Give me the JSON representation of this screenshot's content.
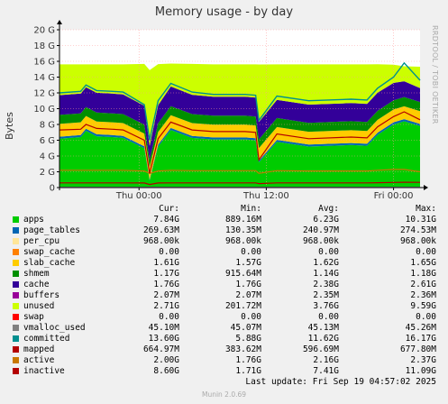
{
  "page": {
    "watermark": "RRDTOOL / TOBI OETIKER",
    "last_update": "Last update: Fri Sep 19 04:57:02 2025",
    "version": "Munin 2.0.69"
  },
  "legend_headers": {
    "cur": "Cur:",
    "min": "Min:",
    "avg": "Avg:",
    "max": "Max:"
  },
  "legend": [
    {
      "name": "apps",
      "color": "#00cc00",
      "cur": "7.84G",
      "min": "889.16M",
      "avg": "6.23G",
      "max": "10.31G"
    },
    {
      "name": "page_tables",
      "color": "#0066b3",
      "cur": "269.63M",
      "min": "130.35M",
      "avg": "240.97M",
      "max": "274.53M"
    },
    {
      "name": "per_cpu",
      "color": "#ffe699",
      "cur": "968.00k",
      "min": "968.00k",
      "avg": "968.00k",
      "max": "968.00k"
    },
    {
      "name": "swap_cache",
      "color": "#ff8000",
      "cur": "0.00",
      "min": "0.00",
      "avg": "0.00",
      "max": "0.00"
    },
    {
      "name": "slab_cache",
      "color": "#ffcc00",
      "cur": "1.61G",
      "min": "1.57G",
      "avg": "1.62G",
      "max": "1.65G"
    },
    {
      "name": "shmem",
      "color": "#008f00",
      "cur": "1.17G",
      "min": "915.64M",
      "avg": "1.14G",
      "max": "1.18G"
    },
    {
      "name": "cache",
      "color": "#330099",
      "cur": "1.76G",
      "min": "1.76G",
      "avg": "2.38G",
      "max": "2.61G"
    },
    {
      "name": "buffers",
      "color": "#990099",
      "cur": "2.07M",
      "min": "2.07M",
      "avg": "2.35M",
      "max": "2.36M"
    },
    {
      "name": "unused",
      "color": "#ccff00",
      "cur": "2.71G",
      "min": "201.72M",
      "avg": "3.76G",
      "max": "9.59G"
    },
    {
      "name": "swap",
      "color": "#ff0000",
      "cur": "0.00",
      "min": "0.00",
      "avg": "0.00",
      "max": "0.00"
    },
    {
      "name": "vmalloc_used",
      "color": "#808080",
      "cur": "45.10M",
      "min": "45.07M",
      "avg": "45.13M",
      "max": "45.26M"
    },
    {
      "name": "committed",
      "color": "#008f8f",
      "cur": "13.60G",
      "min": "5.88G",
      "avg": "11.62G",
      "max": "16.17G"
    },
    {
      "name": "mapped",
      "color": "#b30000",
      "cur": "664.97M",
      "min": "383.62M",
      "avg": "596.69M",
      "max": "677.80M"
    },
    {
      "name": "active",
      "color": "#c87800",
      "cur": "2.00G",
      "min": "1.76G",
      "avg": "2.16G",
      "max": "2.37G"
    },
    {
      "name": "inactive",
      "color": "#b30000",
      "cur": "8.60G",
      "min": "1.71G",
      "avg": "7.41G",
      "max": "11.09G"
    }
  ],
  "chart_data": {
    "type": "area",
    "title": "Memory usage - by day",
    "ylabel": "Bytes",
    "xlabel": "",
    "y_unit": "G",
    "ylim": [
      0,
      20
    ],
    "yticks": [
      0,
      2,
      4,
      6,
      8,
      10,
      12,
      14,
      16,
      18,
      20
    ],
    "ytick_labels": [
      "0",
      "2 G",
      "4 G",
      "6 G",
      "8 G",
      "10 G",
      "12 G",
      "14 G",
      "16 G",
      "18 G",
      "20 G"
    ],
    "x_hours_range": [
      -7.5,
      26.5
    ],
    "xticks": [
      {
        "hour": 0,
        "label": "Thu 00:00"
      },
      {
        "hour": 12,
        "label": "Thu 12:00"
      },
      {
        "hour": 24,
        "label": "Fri 00:00"
      }
    ],
    "grid": true,
    "x_hours": [
      -7.5,
      -5.5,
      -5.0,
      -4.0,
      -2.5,
      -1.5,
      0.5,
      1.0,
      1.8,
      3.0,
      5.0,
      7.0,
      10.0,
      11.0,
      11.3,
      13.0,
      16.0,
      20.0,
      21.5,
      22.5,
      24.0,
      25.0,
      26.5
    ],
    "series": [
      {
        "name": "apps",
        "values": [
          6.2,
          6.4,
          7.2,
          6.5,
          6.4,
          6.3,
          5.0,
          0.9,
          5.2,
          7.3,
          6.3,
          6.1,
          6.1,
          6.0,
          3.2,
          5.8,
          5.2,
          5.4,
          5.3,
          6.7,
          8.0,
          8.4,
          7.8
        ]
      },
      {
        "name": "page_tables",
        "values": [
          0.25,
          0.25,
          0.25,
          0.25,
          0.25,
          0.25,
          0.24,
          0.13,
          0.24,
          0.25,
          0.25,
          0.25,
          0.25,
          0.25,
          0.2,
          0.25,
          0.25,
          0.25,
          0.25,
          0.26,
          0.27,
          0.27,
          0.27
        ]
      },
      {
        "name": "per_cpu",
        "values": [
          0.001,
          0.001,
          0.001,
          0.001,
          0.001,
          0.001,
          0.001,
          0.001,
          0.001,
          0.001,
          0.001,
          0.001,
          0.001,
          0.001,
          0.001,
          0.001,
          0.001,
          0.001,
          0.001,
          0.001,
          0.001,
          0.001,
          0.001
        ]
      },
      {
        "name": "swap_cache",
        "values": [
          0,
          0,
          0,
          0,
          0,
          0,
          0,
          0,
          0,
          0,
          0,
          0,
          0,
          0,
          0,
          0,
          0,
          0,
          0,
          0,
          0,
          0,
          0
        ]
      },
      {
        "name": "slab_cache",
        "values": [
          1.62,
          1.62,
          1.62,
          1.62,
          1.62,
          1.62,
          1.6,
          1.57,
          1.6,
          1.62,
          1.62,
          1.62,
          1.62,
          1.62,
          1.6,
          1.62,
          1.62,
          1.62,
          1.62,
          1.62,
          1.63,
          1.63,
          1.61
        ]
      },
      {
        "name": "shmem",
        "values": [
          1.14,
          1.14,
          1.14,
          1.14,
          1.14,
          1.14,
          1.12,
          0.92,
          1.1,
          1.14,
          1.14,
          1.14,
          1.14,
          1.14,
          1.1,
          1.14,
          1.14,
          1.14,
          1.14,
          1.15,
          1.16,
          1.17,
          1.17
        ]
      },
      {
        "name": "cache",
        "values": [
          2.5,
          2.5,
          2.5,
          2.5,
          2.5,
          2.5,
          2.4,
          1.76,
          2.3,
          2.5,
          2.45,
          2.4,
          2.4,
          2.4,
          2.2,
          2.3,
          2.3,
          2.3,
          2.3,
          2.3,
          2.2,
          2.0,
          1.76
        ]
      },
      {
        "name": "buffers",
        "values": [
          0.002,
          0.002,
          0.002,
          0.002,
          0.002,
          0.002,
          0.002,
          0.002,
          0.002,
          0.002,
          0.002,
          0.002,
          0.002,
          0.002,
          0.002,
          0.002,
          0.002,
          0.002,
          0.002,
          0.002,
          0.002,
          0.002,
          0.002
        ]
      },
      {
        "name": "unused",
        "values": [
          3.9,
          3.7,
          2.9,
          3.6,
          3.7,
          3.8,
          5.3,
          9.6,
          5.2,
          2.9,
          3.9,
          4.1,
          4.1,
          4.2,
          7.3,
          4.5,
          5.1,
          4.9,
          5.0,
          3.6,
          2.3,
          1.9,
          2.7
        ]
      },
      {
        "name": "swap",
        "values": [
          0,
          0,
          0,
          0,
          0,
          0,
          0,
          0,
          0,
          0,
          0,
          0,
          0,
          0,
          0,
          0,
          0,
          0,
          0,
          0,
          0,
          0,
          0
        ]
      },
      {
        "name": "vmalloc_used",
        "values": [
          0.045,
          0.045,
          0.045,
          0.045,
          0.045,
          0.045,
          0.045,
          0.045,
          0.045,
          0.045,
          0.045,
          0.045,
          0.045,
          0.045,
          0.045,
          0.045,
          0.045,
          0.045,
          0.045,
          0.045,
          0.045,
          0.045,
          0.045
        ]
      },
      {
        "name": "committed",
        "values": [
          12.0,
          12.2,
          13.0,
          12.3,
          12.2,
          12.1,
          10.5,
          6.0,
          11.0,
          13.2,
          12.1,
          11.8,
          11.8,
          11.7,
          8.5,
          11.6,
          11.0,
          11.2,
          11.1,
          12.6,
          14.0,
          15.8,
          13.6
        ]
      },
      {
        "name": "mapped",
        "values": [
          0.6,
          0.6,
          0.6,
          0.6,
          0.6,
          0.6,
          0.58,
          0.39,
          0.58,
          0.6,
          0.6,
          0.6,
          0.6,
          0.6,
          0.5,
          0.6,
          0.6,
          0.6,
          0.6,
          0.62,
          0.65,
          0.67,
          0.66
        ]
      },
      {
        "name": "active",
        "values": [
          2.2,
          2.2,
          2.2,
          2.2,
          2.2,
          2.2,
          2.1,
          1.8,
          2.1,
          2.2,
          2.15,
          2.15,
          2.15,
          2.15,
          1.8,
          2.15,
          2.1,
          2.1,
          2.1,
          2.2,
          2.3,
          2.3,
          2.0
        ]
      },
      {
        "name": "inactive",
        "values": [
          7.3,
          7.4,
          8.0,
          7.5,
          7.4,
          7.3,
          6.0,
          1.8,
          6.2,
          8.3,
          7.3,
          7.1,
          7.1,
          7.0,
          3.5,
          6.8,
          6.2,
          6.4,
          6.3,
          7.7,
          9.0,
          9.6,
          8.6
        ]
      }
    ]
  }
}
